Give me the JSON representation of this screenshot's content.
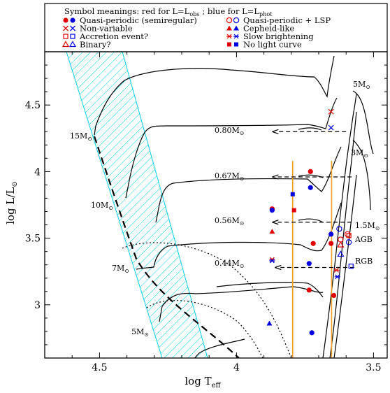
{
  "chart_data": {
    "type": "scatter",
    "xlabel": "log T",
    "xlabel_sub": "eff",
    "ylabel": "log L/L",
    "ylabel_sub": "⊙",
    "xlim": [
      4.7,
      3.45
    ],
    "ylim": [
      2.6,
      4.9
    ],
    "x_ticks": [
      {
        "v": 4.5,
        "label": "4.5"
      },
      {
        "v": 4.0,
        "label": "4"
      },
      {
        "v": 3.5,
        "label": "3.5"
      }
    ],
    "y_ticks": [
      {
        "v": 3.0,
        "label": "3"
      },
      {
        "v": 3.5,
        "label": "3.5"
      },
      {
        "v": 4.0,
        "label": "4"
      },
      {
        "v": 4.5,
        "label": "4.5"
      }
    ],
    "legend": {
      "title": "Symbol meanings: red for L=L",
      "title_sub1": "obs",
      "title_mid": "; blue for L=L",
      "title_sub2": "phot",
      "left": [
        {
          "sym": "filled-circle",
          "label": "Quasi-periodic (semiregular)"
        },
        {
          "sym": "cross",
          "label": "Non-variable"
        },
        {
          "sym": "open-square",
          "label": "Accretion event?"
        },
        {
          "sym": "open-triangle",
          "label": "Binary?"
        }
      ],
      "right": [
        {
          "sym": "open-circle",
          "label": "Quasi-periodic + LSP"
        },
        {
          "sym": "filled-triangle",
          "label": "Cepheid-like"
        },
        {
          "sym": "asterisk",
          "label": "Slow brightening"
        },
        {
          "sym": "filled-square",
          "label": "No light curve"
        }
      ]
    },
    "track_labels": [
      {
        "text": "15M",
        "sub": "⊙"
      },
      {
        "text": "10M",
        "sub": "⊙"
      },
      {
        "text": "7M",
        "sub": "⊙"
      },
      {
        "text": "5M",
        "sub": "⊙"
      },
      {
        "text": "5M",
        "sub": "⊙"
      },
      {
        "text": "3M",
        "sub": "⊙"
      },
      {
        "text": "1.5M",
        "sub": "⊙"
      }
    ],
    "region_labels": [
      "AGB",
      "RGB"
    ],
    "arrow_labels": [
      {
        "text": "0.80M",
        "sub": "⊙"
      },
      {
        "text": "0.67M",
        "sub": "⊙"
      },
      {
        "text": "0.56M",
        "sub": "⊙"
      },
      {
        "text": "0.44M",
        "sub": "⊙"
      }
    ],
    "arrows": [
      {
        "x_start": 3.6,
        "x_end": 3.87,
        "y": 4.3
      },
      {
        "x_start": 3.58,
        "x_end": 3.87,
        "y": 3.96
      },
      {
        "x_start": 3.58,
        "x_end": 3.87,
        "y": 3.62
      },
      {
        "x_start": 3.57,
        "x_end": 3.86,
        "y": 3.28
      }
    ],
    "vlines": [
      {
        "x": 3.795,
        "y0": 2.6,
        "y1": 4.08
      },
      {
        "x": 3.653,
        "y0": 2.6,
        "y1": 4.08
      }
    ],
    "series": [
      {
        "name": "Quasi-periodic (semiregular)",
        "color": "#e00000",
        "marker": "filled-circle",
        "points": [
          [
            3.73,
            4.0
          ],
          [
            3.87,
            3.72
          ],
          [
            3.72,
            3.46
          ],
          [
            3.655,
            3.46
          ],
          [
            3.735,
            3.11
          ],
          [
            3.645,
            3.07
          ]
        ]
      },
      {
        "name": "Quasi-periodic (semiregular)",
        "color": "#0000e0",
        "marker": "filled-circle",
        "points": [
          [
            3.73,
            3.88
          ],
          [
            3.87,
            3.71
          ],
          [
            3.735,
            3.31
          ],
          [
            3.655,
            3.53
          ],
          [
            3.725,
            2.79
          ]
        ]
      },
      {
        "name": "Quasi-periodic + LSP",
        "color": "#e00000",
        "marker": "open-circle",
        "points": [
          [
            3.62,
            3.49
          ],
          [
            3.595,
            3.53
          ]
        ]
      },
      {
        "name": "Quasi-periodic + LSP",
        "color": "#0000e0",
        "marker": "open-circle",
        "points": [
          [
            3.625,
            3.57
          ],
          [
            3.59,
            3.47
          ]
        ]
      },
      {
        "name": "Non-variable",
        "color": "#e00000",
        "marker": "cross",
        "points": [
          [
            3.655,
            4.45
          ]
        ]
      },
      {
        "name": "Non-variable",
        "color": "#0000e0",
        "marker": "cross",
        "points": [
          [
            3.655,
            4.33
          ]
        ]
      },
      {
        "name": "Cepheid-like",
        "color": "#e00000",
        "marker": "filled-triangle",
        "points": [
          [
            3.87,
            3.55
          ]
        ]
      },
      {
        "name": "Cepheid-like",
        "color": "#0000e0",
        "marker": "filled-triangle",
        "points": [
          [
            3.88,
            2.86
          ]
        ]
      },
      {
        "name": "Accretion event?",
        "color": "#e00000",
        "marker": "open-square",
        "points": [
          [
            3.59,
            3.52
          ]
        ]
      },
      {
        "name": "Accretion event?",
        "color": "#0000e0",
        "marker": "open-square",
        "points": [
          [
            3.582,
            3.29
          ]
        ]
      },
      {
        "name": "Binary?",
        "color": "#e00000",
        "marker": "open-triangle",
        "points": [
          [
            3.62,
            3.45
          ]
        ]
      },
      {
        "name": "Binary?",
        "color": "#0000e0",
        "marker": "open-triangle",
        "points": [
          [
            3.62,
            3.38
          ]
        ]
      },
      {
        "name": "Slow brightening",
        "color": "#e00000",
        "marker": "asterisk",
        "points": [
          [
            3.87,
            3.34
          ],
          [
            3.635,
            3.26
          ]
        ]
      },
      {
        "name": "Slow brightening",
        "color": "#0000e0",
        "marker": "asterisk",
        "points": [
          [
            3.87,
            3.33
          ],
          [
            3.632,
            3.21
          ]
        ]
      },
      {
        "name": "No light curve",
        "color": "#e00000",
        "marker": "filled-square",
        "points": [
          [
            3.79,
            3.71
          ]
        ]
      },
      {
        "name": "No light curve",
        "color": "#0000e0",
        "marker": "filled-square",
        "points": [
          [
            3.795,
            3.83
          ]
        ]
      }
    ],
    "colors": {
      "red": "#e00000",
      "blue": "#0000e0",
      "orange": "#f0a020",
      "hatch": "#00cfe0"
    }
  }
}
